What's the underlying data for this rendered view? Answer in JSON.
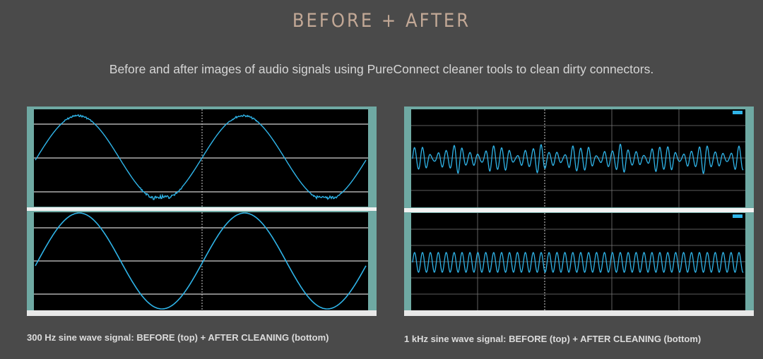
{
  "header": {
    "title": "BEFORE + AFTER",
    "subtitle": "Before and after images of audio signals using PureConnect cleaner tools to clean dirty connectors."
  },
  "figures": [
    {
      "caption": "300 Hz sine wave signal: BEFORE (top) + AFTER CLEANING (bottom)",
      "frequency_hz": 300,
      "cycles_shown": 2,
      "top_state": "before",
      "bottom_state": "after cleaning"
    },
    {
      "caption": "1 kHz sine wave signal: BEFORE (top) + AFTER CLEANING (bottom)",
      "frequency_hz": 1000,
      "cycles_shown": 42,
      "top_state": "before",
      "bottom_state": "after cleaning"
    }
  ],
  "colors": {
    "background": "#4a4a4a",
    "title": "#c2a896",
    "scope_frame": "#6fa9a3",
    "scope_screen": "#000000",
    "trace": "#2fb4e8",
    "grid": "#d0d0d0"
  }
}
